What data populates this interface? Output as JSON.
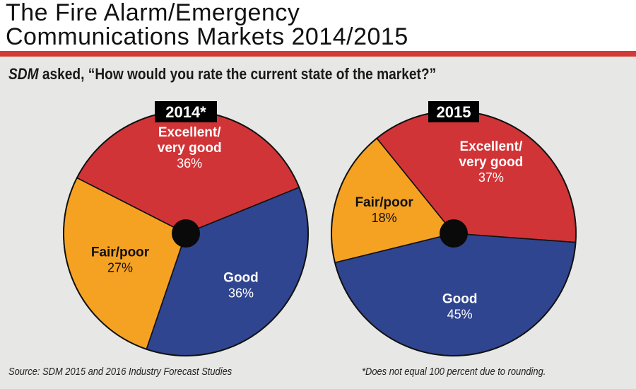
{
  "header": {
    "title_line1": "The Fire Alarm/Emergency",
    "title_line2": "Communications Markets 2014/2015"
  },
  "question": {
    "source_name": "SDM",
    "text": " asked, “How would you rate the current state of the market?”"
  },
  "footer": {
    "source": "Source: SDM 2015 and 2016 Industry Forecast Studies",
    "footnote": "*Does not equal 100 percent due to rounding."
  },
  "colors": {
    "excellent": "#d13437",
    "good": "#2f4590",
    "fair": "#f5a223",
    "center": "#0a0a0a",
    "outline": "#111111",
    "year_box": "#000000"
  },
  "chart_data": [
    {
      "type": "pie",
      "title": "2014*",
      "categories": [
        "Excellent/ very good",
        "Good",
        "Fair/poor"
      ],
      "labels": [
        {
          "line1": "Excellent/",
          "line2": "very good",
          "value_label": "36%"
        },
        {
          "line1": "Good",
          "line2": "",
          "value_label": "36%"
        },
        {
          "line1": "Fair/poor",
          "line2": "",
          "value_label": "27%"
        }
      ],
      "values": [
        36,
        36,
        27
      ]
    },
    {
      "type": "pie",
      "title": "2015",
      "categories": [
        "Excellent/ very good",
        "Good",
        "Fair/poor"
      ],
      "labels": [
        {
          "line1": "Excellent/",
          "line2": "very good",
          "value_label": "37%"
        },
        {
          "line1": "Good",
          "line2": "",
          "value_label": "45%"
        },
        {
          "line1": "Fair/poor",
          "line2": "",
          "value_label": "18%"
        }
      ],
      "values": [
        37,
        45,
        18
      ]
    }
  ]
}
